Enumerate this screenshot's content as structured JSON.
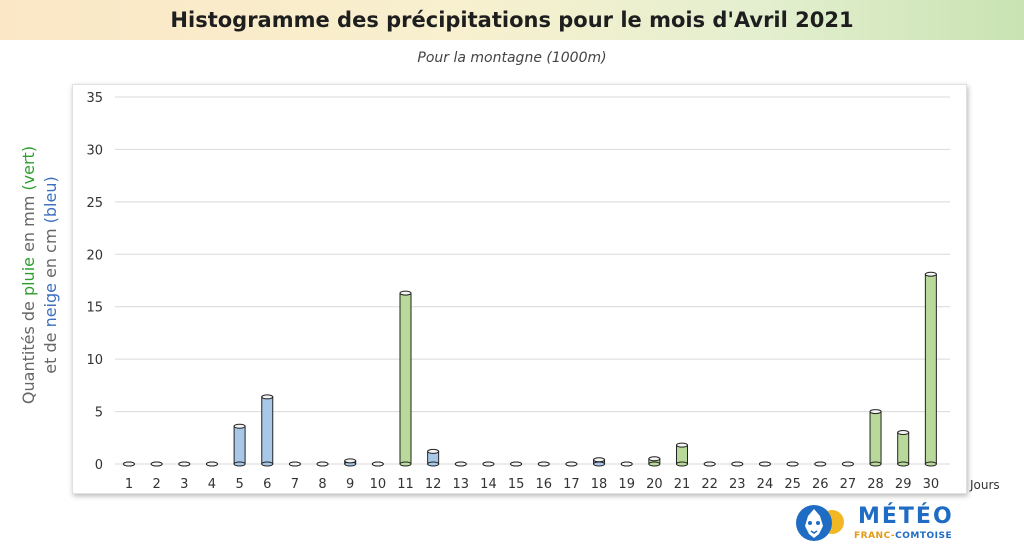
{
  "title": "Histogramme des précipitations pour le mois d'Avril 2021",
  "subtitle": "Pour la montagne (1000m)",
  "ylabel": {
    "line1": {
      "a": "Quantités de ",
      "b": "pluie",
      "c": " en mm ",
      "d": "(vert)"
    },
    "line2": {
      "a": "et de ",
      "b": "neige",
      "c": " en cm ",
      "d": "(bleu)"
    }
  },
  "xlabel": "Jours",
  "logo": {
    "main": "MÉTÉO",
    "sub1": "FRANC-",
    "sub2": "COMTOISE"
  },
  "colors": {
    "rain": "#b9d99a",
    "snow": "#a9c8e8",
    "rain_stroke": "#111",
    "snow_stroke": "#111"
  },
  "chart_data": {
    "type": "bar",
    "categories": [
      "1",
      "2",
      "3",
      "4",
      "5",
      "6",
      "7",
      "8",
      "9",
      "10",
      "11",
      "12",
      "13",
      "14",
      "15",
      "16",
      "17",
      "18",
      "19",
      "20",
      "21",
      "22",
      "23",
      "24",
      "25",
      "26",
      "27",
      "28",
      "29",
      "30"
    ],
    "values": [
      0,
      0,
      0,
      0,
      3.6,
      6.4,
      0,
      0,
      0.3,
      0,
      16.3,
      1.2,
      0,
      0,
      0,
      0,
      0,
      0.4,
      0,
      0.5,
      1.8,
      0,
      0,
      0,
      0,
      0,
      0,
      5.0,
      3.0,
      18.1
    ],
    "kind": [
      "snow",
      "snow",
      "snow",
      "snow",
      "snow",
      "snow",
      "snow",
      "snow",
      "snow",
      "snow",
      "rain",
      "snow",
      "snow",
      "snow",
      "snow",
      "snow",
      "snow",
      "snow",
      "snow",
      "rain",
      "rain",
      "snow",
      "snow",
      "snow",
      "snow",
      "snow",
      "snow",
      "rain",
      "rain",
      "rain"
    ],
    "ylim": [
      0,
      35
    ],
    "yticks": [
      0,
      5,
      10,
      15,
      20,
      25,
      30,
      35
    ],
    "grid": true
  }
}
